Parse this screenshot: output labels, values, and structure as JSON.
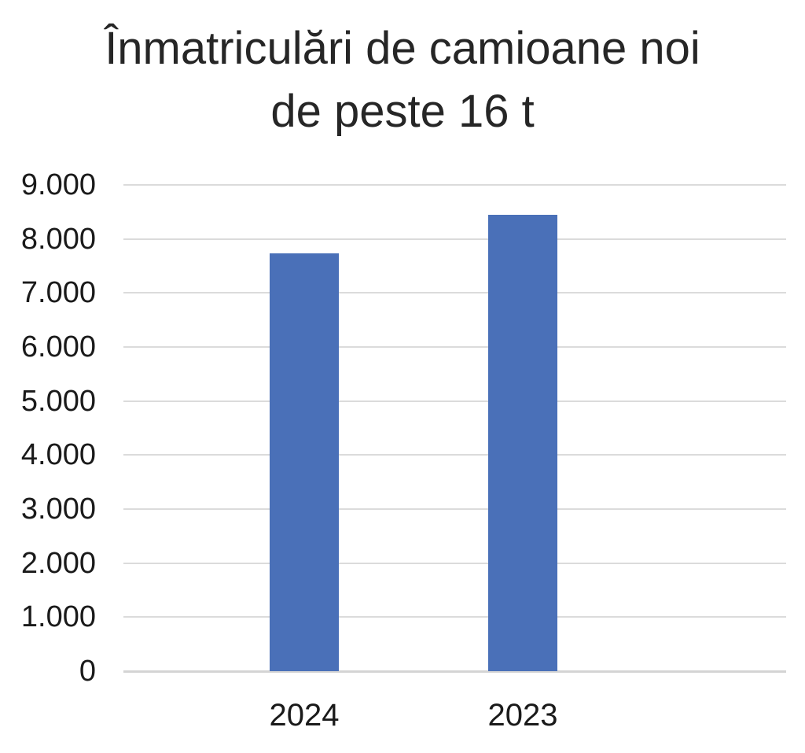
{
  "title": {
    "line1": "Înmatriculări de camioane noi",
    "line2": "de peste 16 t"
  },
  "chart_data": {
    "type": "bar",
    "title": "Înmatriculări de camioane noi de peste 16 t",
    "categories": [
      "2024",
      "2023"
    ],
    "values": [
      7730,
      8440
    ],
    "xlabel": "",
    "ylabel": "",
    "ylim": [
      0,
      9000
    ],
    "ytick_step": 1000,
    "ytick_labels": [
      "0",
      "1.000",
      "2.000",
      "3.000",
      "4.000",
      "5.000",
      "6.000",
      "7.000",
      "8.000",
      "9.000"
    ],
    "grid": true,
    "legend": false,
    "number_format": "dot-thousands",
    "colors": {
      "bar": "#4A70B8",
      "gridline": "#DBDBDB",
      "axis_line": "#D4D4D4",
      "title_text": "#262626",
      "tick_text": "#1A1A1A"
    }
  }
}
